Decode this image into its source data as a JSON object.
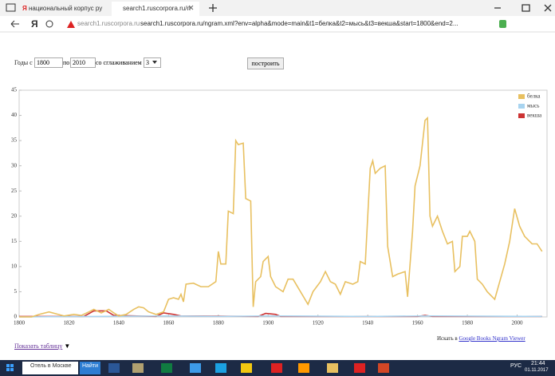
{
  "browser": {
    "tabs": [
      "национальный корпус ру",
      "search1.ruscorpora.ru/n"
    ],
    "url_host": "search1.ruscorpora.ru",
    "url": "search1.ruscorpora.ru/ngram.xml?env=alpha&mode=main&t1=белка&t2=мысь&t3=векша&start=1800&end=2..."
  },
  "form": {
    "from_label": "Годы с",
    "from": "1800",
    "to_label": "по",
    "to": "2010",
    "smoothing_label": "со сглаживанием",
    "smoothing": "3",
    "button": "построить"
  },
  "chart_data": {
    "type": "line",
    "legend": "top-right",
    "grid": false,
    "xlim": [
      1800,
      2012
    ],
    "xticks": [
      1800,
      1820,
      1840,
      1860,
      1880,
      1900,
      1920,
      1940,
      1960,
      1980,
      2000
    ],
    "ylim": [
      0,
      45
    ],
    "yticks": [
      0,
      5,
      10,
      15,
      20,
      25,
      30,
      35,
      40,
      45
    ],
    "series": [
      {
        "name": "белка",
        "color": "#e8c060",
        "x": [
          1800,
          1805,
          1808,
          1812,
          1815,
          1818,
          1822,
          1825,
          1828,
          1830,
          1833,
          1836,
          1838,
          1840,
          1843,
          1846,
          1848,
          1850,
          1852,
          1855,
          1858,
          1860,
          1862,
          1864,
          1865,
          1866,
          1867,
          1870,
          1873,
          1876,
          1879,
          1880,
          1881,
          1883,
          1884,
          1886,
          1887,
          1888,
          1890,
          1891,
          1893,
          1894,
          1895,
          1897,
          1898,
          1900,
          1901,
          1903,
          1906,
          1908,
          1910,
          1913,
          1916,
          1918,
          1921,
          1923,
          1925,
          1927,
          1929,
          1931,
          1934,
          1936,
          1937,
          1939,
          1941,
          1942,
          1943,
          1945,
          1947,
          1948,
          1950,
          1952,
          1955,
          1956,
          1958,
          1959,
          1961,
          1963,
          1964,
          1965,
          1966,
          1968,
          1970,
          1972,
          1974,
          1975,
          1977,
          1978,
          1980,
          1981,
          1983,
          1984,
          1986,
          1988,
          1990,
          1991,
          1993,
          1995,
          1997,
          1999,
          2001,
          2003,
          2006,
          2008,
          2010
        ],
        "values": [
          0,
          0,
          0.5,
          1,
          0.6,
          0.2,
          0.5,
          0.3,
          1,
          1.5,
          0.8,
          1.5,
          0.8,
          0.2,
          0.5,
          1.5,
          2,
          1.8,
          1,
          0.5,
          1,
          3.5,
          3.8,
          3.5,
          4.5,
          3,
          6.5,
          6.7,
          6,
          6,
          7,
          13,
          10.5,
          10.5,
          21,
          20.5,
          35,
          34.2,
          34.5,
          23.5,
          23,
          2,
          7,
          8,
          11,
          12,
          8,
          6,
          5,
          7.5,
          7.5,
          5,
          2.5,
          5,
          7,
          9,
          7,
          6.5,
          4.5,
          7,
          6.5,
          7,
          11,
          10.5,
          29.5,
          31,
          28.5,
          29.5,
          30,
          14,
          8,
          8.5,
          9,
          4,
          17,
          26,
          30,
          39,
          39.5,
          20,
          18,
          20,
          17,
          14.5,
          15,
          9,
          10,
          16,
          16,
          17,
          15,
          7.5,
          6.5,
          5,
          4,
          3.5,
          7,
          10.5,
          15,
          21.5,
          18,
          16,
          14.5,
          14.5,
          13
        ]
      },
      {
        "name": "мысь",
        "color": "#a8d4f0",
        "x": [
          1800,
          1830,
          1860,
          1880,
          1900,
          1940,
          1965,
          2010
        ],
        "values": [
          0,
          0.1,
          0.2,
          0.1,
          0.2,
          0.1,
          0.2,
          0.1
        ]
      },
      {
        "name": "векша",
        "color": "#cc3333",
        "x": [
          1800,
          1826,
          1830,
          1835,
          1838,
          1855,
          1858,
          1862,
          1865,
          1896,
          1899,
          1903,
          1905,
          1960,
          1963,
          1966,
          2010
        ],
        "values": [
          0.1,
          0.1,
          1.2,
          1.2,
          0.3,
          0.1,
          0.8,
          0.5,
          0.2,
          0.1,
          0.7,
          0.5,
          0.1,
          0.1,
          0.3,
          0.1,
          0.1
        ]
      }
    ]
  },
  "footer": {
    "search_prefix": "Искать в",
    "search_link": "Google Books Ngram Viewer",
    "show_table": "Показать таблицу",
    "show_table_arrow": "▼"
  },
  "taskbar": {
    "search": "Отель в Москве",
    "find": "Найти",
    "lang": "РУС",
    "time": "21:44",
    "date": "01.11.2017"
  }
}
